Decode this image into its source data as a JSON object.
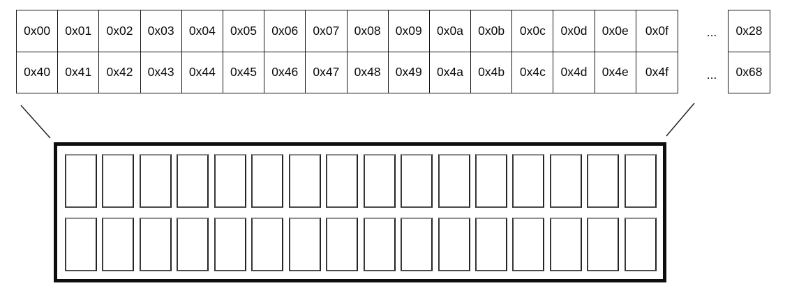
{
  "diagram": {
    "address_table": {
      "rows": [
        {
          "cells": [
            "0x00",
            "0x01",
            "0x02",
            "0x03",
            "0x04",
            "0x05",
            "0x06",
            "0x07",
            "0x08",
            "0x09",
            "0x0a",
            "0x0b",
            "0x0c",
            "0x0d",
            "0x0e",
            "0x0f"
          ],
          "ellipsis": "...",
          "overflow": "0x28"
        },
        {
          "cells": [
            "0x40",
            "0x41",
            "0x42",
            "0x43",
            "0x44",
            "0x45",
            "0x46",
            "0x47",
            "0x48",
            "0x49",
            "0x4a",
            "0x4b",
            "0x4c",
            "0x4d",
            "0x4e",
            "0x4f"
          ],
          "ellipsis": "...",
          "overflow": "0x68"
        }
      ]
    },
    "detail_box": {
      "rows": 2,
      "cells_per_row": 16
    },
    "colors": {
      "line": "#161616",
      "box_border": "#0e0e0e",
      "slot_border": "#4b4b4b",
      "background": "#ffffff"
    }
  }
}
